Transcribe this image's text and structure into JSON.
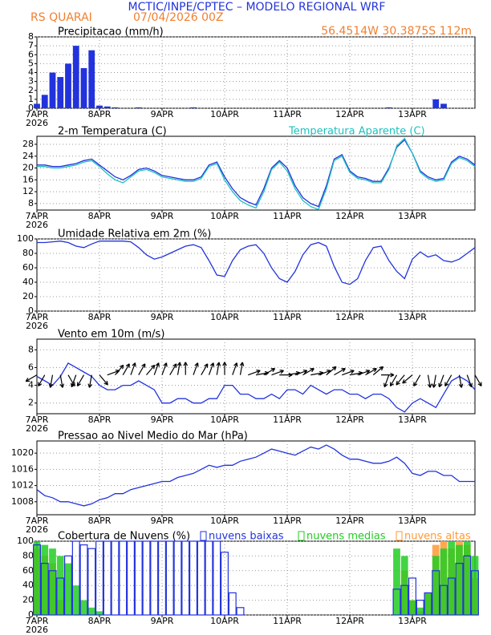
{
  "header": {
    "title": "MCTIC/INPE/CPTEC – MODELO REGIONAL WRF",
    "location": "RS QUARAI",
    "run": "07/04/2026 00Z",
    "coords": "56.4514W 30.3875S 112m"
  },
  "time_axis": {
    "xlim": [
      0,
      168
    ],
    "x": [
      0,
      3,
      6,
      9,
      12,
      15,
      18,
      21,
      24,
      27,
      30,
      33,
      36,
      39,
      42,
      45,
      48,
      51,
      54,
      57,
      60,
      63,
      66,
      69,
      72,
      75,
      78,
      81,
      84,
      87,
      90,
      93,
      96,
      99,
      102,
      105,
      108,
      111,
      114,
      117,
      120,
      123,
      126,
      129,
      132,
      135,
      138,
      141,
      144,
      147,
      150,
      153,
      156,
      159,
      162,
      165,
      168
    ],
    "xticks": [
      {
        "value": 0,
        "label": "7APR"
      },
      {
        "value": 24,
        "label": "8APR"
      },
      {
        "value": 48,
        "label": "9APR"
      },
      {
        "value": 72,
        "label": "10APR"
      },
      {
        "value": 96,
        "label": "11APR"
      },
      {
        "value": 120,
        "label": "12APR"
      },
      {
        "value": 144,
        "label": "13APR"
      }
    ],
    "year": "2026"
  },
  "chart_data": [
    {
      "type": "bar",
      "title": "Precipitacao (mm/h)",
      "color": "#2233dd",
      "values": [
        0.5,
        1.5,
        4,
        3.5,
        5,
        7,
        4.5,
        6.5,
        0.3,
        0.2,
        0.1,
        0,
        0,
        0.1,
        0,
        0,
        0,
        0,
        0,
        0,
        0.1,
        0,
        0,
        0,
        0,
        0,
        0,
        0,
        0,
        0,
        0,
        0,
        0,
        0,
        0,
        0,
        0,
        0,
        0,
        0,
        0,
        0,
        0,
        0,
        0,
        0.1,
        0,
        0,
        0,
        0,
        0,
        1,
        0.5,
        0,
        0,
        0,
        0
      ],
      "ylim": [
        0,
        8
      ],
      "yticks": [
        0,
        1,
        2,
        3,
        4,
        5,
        6,
        7,
        8
      ],
      "grid": true
    },
    {
      "type": "line",
      "title": "2-m Temperatura (C)",
      "series": [
        {
          "color": "#2233dd",
          "values": [
            21,
            21,
            20.5,
            20.5,
            21,
            21.5,
            22.5,
            23,
            21,
            19,
            17,
            16,
            17.5,
            19.5,
            20,
            19,
            17.5,
            17,
            16.5,
            16,
            16,
            17,
            21,
            22,
            17,
            13,
            10,
            8.5,
            7.5,
            13,
            20,
            22.5,
            20,
            14,
            10,
            8,
            7,
            14,
            23,
            24.5,
            19,
            17,
            16.5,
            15.5,
            15.5,
            20,
            27,
            29.5,
            25,
            19,
            17,
            16,
            16.5,
            22,
            24,
            23,
            21
          ]
        },
        {
          "name": "Temperatura Aparente (C)",
          "color": "#20c0c0",
          "values": [
            20.5,
            20.5,
            20,
            20,
            20.5,
            21,
            22,
            22.5,
            20.5,
            18,
            16,
            15,
            17,
            19,
            19.5,
            18.5,
            17,
            16.5,
            16,
            15.5,
            15.5,
            16.5,
            20.5,
            21.5,
            16,
            12,
            9,
            7.5,
            6.5,
            12,
            19.5,
            22,
            19,
            13,
            9,
            7,
            6,
            13,
            22.5,
            24,
            18.5,
            16.5,
            16,
            15,
            15,
            19.5,
            27.5,
            30,
            25,
            18.5,
            16.5,
            15.5,
            16,
            21.5,
            23.5,
            22.5,
            20.5
          ]
        }
      ],
      "ylim": [
        5.8,
        30.7
      ],
      "yticks": [
        8,
        12,
        16,
        20,
        24,
        28
      ],
      "grid": true
    },
    {
      "type": "line",
      "title": "Umidade Relativa em 2m (%)",
      "series": [
        {
          "color": "#2233dd",
          "values": [
            95,
            95,
            96,
            97,
            95,
            90,
            88,
            93,
            97,
            97,
            97,
            97,
            96,
            88,
            78,
            72,
            75,
            80,
            85,
            90,
            92,
            88,
            70,
            50,
            48,
            70,
            85,
            90,
            92,
            80,
            60,
            45,
            40,
            55,
            78,
            92,
            95,
            90,
            62,
            40,
            37,
            45,
            70,
            88,
            90,
            70,
            55,
            45,
            72,
            82,
            75,
            78,
            70,
            68,
            72,
            80,
            88
          ]
        }
      ],
      "ylim": [
        0,
        100
      ],
      "yticks": [
        0,
        20,
        40,
        60,
        80,
        100
      ],
      "grid": true
    },
    {
      "type": "wind",
      "title": "Vento em 10m (m/s)",
      "series": [
        {
          "color": "#2233dd",
          "values": [
            5,
            4.5,
            4,
            5,
            6.5,
            6,
            5.5,
            5,
            4,
            3.5,
            3.5,
            4,
            4,
            4.5,
            4,
            3.5,
            2,
            2,
            2.5,
            2.5,
            2,
            2,
            2.5,
            2.5,
            4,
            4,
            3,
            3,
            2.5,
            2.5,
            3,
            2.5,
            3.5,
            3.5,
            3,
            4,
            3.5,
            3,
            3.5,
            3.5,
            3,
            3,
            2.5,
            3,
            3,
            2.5,
            1.5,
            1,
            2,
            2.5,
            2,
            1.5,
            3,
            4.5,
            5,
            4.5,
            3.5
          ]
        }
      ],
      "directions": [
        60,
        30,
        10,
        350,
        330,
        20,
        30,
        10,
        320,
        250,
        220,
        210,
        200,
        210,
        220,
        200,
        200,
        210,
        190,
        180,
        200,
        210,
        200,
        190,
        180,
        200,
        190,
        250,
        260,
        240,
        250,
        270,
        260,
        250,
        240,
        260,
        250,
        230,
        240,
        250,
        260,
        250,
        240,
        230,
        270,
        20,
        30,
        40,
        50,
        30,
        350,
        10,
        20,
        30,
        350,
        340,
        330
      ],
      "ylim": [
        0.8,
        9.2
      ],
      "yticks": [
        2,
        4,
        6,
        8
      ],
      "grid": true
    },
    {
      "type": "line",
      "title": "Pressao ao Nivel Medio do Mar (hPa)",
      "series": [
        {
          "color": "#2233dd",
          "values": [
            1011,
            1009.5,
            1009,
            1008,
            1008,
            1007.5,
            1007,
            1007.5,
            1008.5,
            1009,
            1010,
            1010,
            1011,
            1011.5,
            1012,
            1012.5,
            1013,
            1013,
            1014,
            1014.5,
            1015,
            1016,
            1017,
            1016.5,
            1017,
            1017,
            1018,
            1018.5,
            1019,
            1020,
            1021,
            1020.5,
            1020,
            1019.5,
            1020.5,
            1021.5,
            1021,
            1022,
            1021,
            1019.5,
            1018.5,
            1018.5,
            1018,
            1017.5,
            1017.5,
            1018,
            1019,
            1017.5,
            1015,
            1014.5,
            1015.5,
            1015.5,
            1014.5,
            1014.5,
            1013,
            1013,
            1013
          ]
        }
      ],
      "ylim": [
        1004.8,
        1023
      ],
      "yticks": [
        1008,
        1012,
        1016,
        1020
      ],
      "grid": true
    },
    {
      "type": "cloudbar",
      "title": "Cobertura de Nuvens (%)",
      "series": [
        {
          "name": "nuvens baixas",
          "color": "#2233dd",
          "values": [
            95,
            70,
            60,
            50,
            80,
            100,
            95,
            90,
            100,
            100,
            100,
            100,
            100,
            100,
            100,
            100,
            100,
            100,
            100,
            100,
            100,
            100,
            100,
            100,
            85,
            30,
            10,
            0,
            0,
            0,
            0,
            0,
            0,
            0,
            0,
            0,
            0,
            0,
            0,
            0,
            0,
            0,
            0,
            0,
            0,
            0,
            35,
            40,
            50,
            20,
            30,
            60,
            40,
            50,
            70,
            80,
            60
          ]
        },
        {
          "name": "nuvens medias",
          "color": "#22cc22",
          "values": [
            100,
            95,
            90,
            80,
            70,
            40,
            20,
            10,
            5,
            0,
            0,
            0,
            0,
            0,
            0,
            0,
            0,
            0,
            0,
            0,
            0,
            0,
            0,
            0,
            0,
            0,
            0,
            0,
            0,
            0,
            0,
            0,
            0,
            0,
            0,
            0,
            0,
            0,
            0,
            0,
            0,
            0,
            0,
            0,
            0,
            0,
            90,
            80,
            20,
            10,
            30,
            80,
            90,
            100,
            95,
            100,
            80
          ]
        },
        {
          "name": "nuvens altas",
          "color": "#ff9933",
          "values": [
            90,
            80,
            70,
            20,
            0,
            0,
            0,
            0,
            0,
            0,
            0,
            0,
            0,
            0,
            0,
            0,
            0,
            0,
            0,
            0,
            0,
            0,
            0,
            0,
            0,
            0,
            0,
            0,
            0,
            0,
            0,
            0,
            0,
            0,
            0,
            0,
            0,
            0,
            0,
            0,
            0,
            0,
            0,
            0,
            0,
            0,
            0,
            60,
            20,
            5,
            30,
            95,
            100,
            90,
            100,
            95,
            50
          ]
        }
      ],
      "ylim": [
        0,
        100
      ],
      "yticks": [
        0,
        20,
        40,
        60,
        80,
        100
      ],
      "grid": true
    }
  ]
}
